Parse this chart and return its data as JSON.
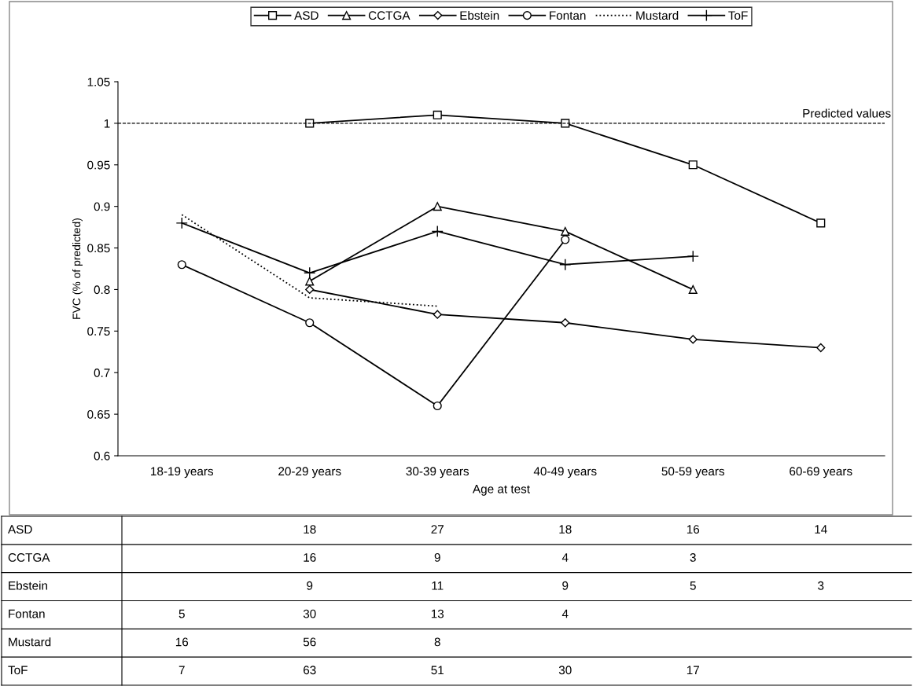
{
  "chart_data": [
    {
      "type": "line",
      "xlabel": "Age at test",
      "ylabel": "FVC (% of predicted)",
      "categories": [
        "18-19 years",
        "20-29 years",
        "30-39 years",
        "40-49 years",
        "50-59 years",
        "60-69 years"
      ],
      "series": [
        {
          "name": "ASD",
          "color": "#000000",
          "marker": "square",
          "line_style": "solid",
          "values": [
            null,
            1.0,
            1.01,
            1.0,
            0.95,
            0.88
          ]
        },
        {
          "name": "CCTGA",
          "color": "#000000",
          "marker": "triangle",
          "line_style": "solid",
          "values": [
            null,
            0.81,
            0.9,
            0.87,
            0.8,
            null
          ]
        },
        {
          "name": "Ebstein",
          "color": "#000000",
          "marker": "diamond",
          "line_style": "solid",
          "values": [
            null,
            0.8,
            0.77,
            0.76,
            0.74,
            0.73
          ]
        },
        {
          "name": "Fontan",
          "color": "#000000",
          "marker": "circle",
          "line_style": "solid",
          "values": [
            0.83,
            0.76,
            0.66,
            0.86,
            null,
            null
          ]
        },
        {
          "name": "Mustard",
          "color": "#000000",
          "marker": "none",
          "line_style": "dotted",
          "values": [
            0.89,
            0.79,
            0.78,
            null,
            null,
            null
          ]
        },
        {
          "name": "ToF",
          "color": "#000000",
          "marker": "cross",
          "line_style": "solid",
          "values": [
            0.88,
            0.82,
            0.87,
            0.83,
            0.84,
            null
          ]
        }
      ],
      "ylim": [
        0.6,
        1.05
      ],
      "yticks": [
        0.6,
        0.65,
        0.7,
        0.75,
        0.8,
        0.85,
        0.9,
        0.95,
        1,
        1.05
      ],
      "ref_lines": [
        {
          "axis": "y",
          "value": 1,
          "label": "Predicted values",
          "color": "#000000",
          "line_style": "dashed"
        }
      ],
      "grid": false,
      "legend": "top"
    },
    {
      "type": "heatmap",
      "categories": [
        null,
        null,
        null,
        null,
        null,
        null
      ],
      "y_categories": [
        "ASD",
        "CCTGA",
        "Ebstein",
        "Fontan",
        "Mustard",
        "ToF"
      ],
      "cells": [
        [
          null,
          18,
          27,
          18,
          16,
          14
        ],
        [
          null,
          16,
          9,
          4,
          3,
          null
        ],
        [
          null,
          9,
          11,
          9,
          5,
          3
        ],
        [
          5,
          30,
          13,
          4,
          null,
          null
        ],
        [
          16,
          56,
          8,
          null,
          null,
          null
        ],
        [
          7,
          63,
          51,
          30,
          17,
          null
        ]
      ],
      "data_labels": true
    }
  ]
}
